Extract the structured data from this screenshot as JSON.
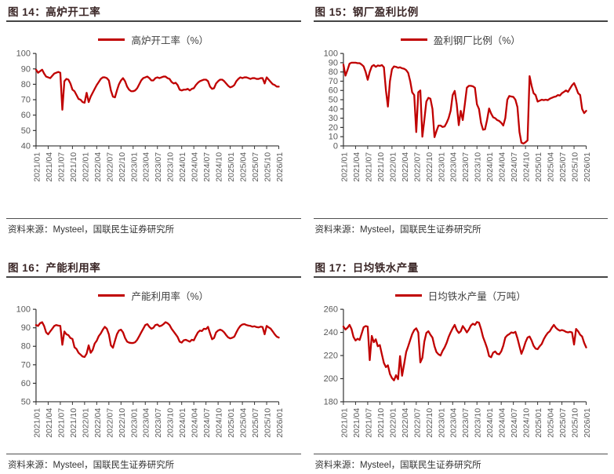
{
  "colors": {
    "series_red": "#c00000",
    "axis": "#333333",
    "tick_label": "#595959",
    "title_text": "#3a2626",
    "title_rule": "#454545",
    "source_rule": "#4f4f4f",
    "source_text": "#333333",
    "background": "#ffffff"
  },
  "figures": [
    {
      "title": "图 14：高炉开工率",
      "legend": "高炉开工率（%）",
      "source": "资料来源：Mysteel，国联民生证券研究所"
    },
    {
      "title": "图 15：钢厂盈利比例",
      "legend": "盈利钢厂比例（%）",
      "source": "资料来源：Mysteel，国联民生证券研究所"
    },
    {
      "title": "图 16：产能利用率",
      "legend": "产能利用率（%）",
      "source": "资料来源：Mysteel，国联民生证券研究所"
    },
    {
      "title": "图 17：日均铁水产量",
      "legend": "日均铁水产量（万吨）",
      "source": "资料来源：Mysteel，国联民生证券研究所"
    }
  ],
  "chart_data": [
    {
      "type": "line",
      "title": "高炉开工率",
      "legend_position": "top",
      "grid": false,
      "x_labels": [
        "2021/01",
        "2021/04",
        "2021/07",
        "2021/10",
        "2022/01",
        "2022/04",
        "2022/07",
        "2022/10",
        "2023/01",
        "2023/04",
        "2023/07",
        "2023/10",
        "2024/01",
        "2024/04",
        "2024/07",
        "2024/10",
        "2025/01",
        "2025/04",
        "2025/07",
        "2025/10",
        "2026/01"
      ],
      "ylim": [
        40,
        100
      ],
      "yticks": [
        40,
        50,
        60,
        70,
        80,
        90,
        100
      ],
      "series": [
        {
          "name": "高炉开工率（%）",
          "values": [
            89.5,
            87.5,
            88.5,
            89.5,
            87,
            85,
            84.5,
            84,
            85.5,
            87,
            87.5,
            88,
            87.5,
            63.5,
            82,
            83.5,
            83,
            80.5,
            76.5,
            75.5,
            73,
            70.5,
            70,
            68.5,
            68,
            74.5,
            68.5,
            72,
            74.5,
            77,
            79.5,
            81.5,
            83.5,
            84.5,
            84.5,
            84,
            82.5,
            76,
            72,
            71.5,
            76,
            80,
            82.5,
            84,
            82,
            78.5,
            76.5,
            75.5,
            75.5,
            76,
            77.5,
            80,
            82.5,
            84,
            84.5,
            85,
            84,
            82.5,
            82.5,
            84,
            84.5,
            84,
            84.5,
            85,
            85,
            84,
            83.5,
            81.5,
            80.5,
            81,
            79.5,
            76.5,
            76,
            76.5,
            76.5,
            77,
            76,
            77,
            77.5,
            79.5,
            81,
            82,
            82.5,
            83,
            83,
            82,
            78.5,
            77,
            77.5,
            80.5,
            82,
            83,
            83,
            82,
            80.5,
            79,
            78,
            78.5,
            79.5,
            82,
            83.5,
            84.5,
            84,
            84.5,
            84.5,
            84,
            83.5,
            84,
            84,
            83.5,
            83.5,
            84,
            84,
            80.5,
            84.5,
            83,
            81.5,
            80,
            79.5,
            78.5,
            78.5
          ]
        }
      ]
    },
    {
      "type": "line",
      "title": "钢厂盈利比例",
      "legend_position": "top",
      "grid": false,
      "x_labels": [
        "2021/01",
        "2021/04",
        "2021/07",
        "2021/10",
        "2022/01",
        "2022/04",
        "2022/07",
        "2022/10",
        "2023/01",
        "2023/04",
        "2023/07",
        "2023/10",
        "2024/01",
        "2024/04",
        "2024/07",
        "2024/10",
        "2025/01",
        "2025/04",
        "2025/07",
        "2025/10",
        "2026/01"
      ],
      "ylim": [
        0,
        100
      ],
      "yticks": [
        0,
        10,
        20,
        30,
        40,
        50,
        60,
        70,
        80,
        90,
        100
      ],
      "series": [
        {
          "name": "盈利钢厂比例（%）",
          "values": [
            88,
            76,
            82,
            89,
            90,
            90,
            90,
            89.5,
            89.5,
            88,
            86,
            80,
            71.5,
            80,
            86,
            87.5,
            85.5,
            87,
            86.5,
            87.5,
            85,
            60,
            42.5,
            70,
            83,
            86,
            85.5,
            84.5,
            85,
            84,
            83.5,
            82,
            79,
            70,
            58,
            55,
            15,
            58,
            60,
            10,
            28,
            48,
            52,
            51,
            40,
            9.5,
            16,
            22,
            22,
            20.5,
            21,
            25,
            30,
            38,
            55,
            59.5,
            45,
            22.5,
            38,
            28,
            45,
            63,
            65,
            65,
            64.5,
            63,
            45,
            40,
            25,
            17.5,
            18,
            28,
            40.5,
            35,
            31,
            30,
            28,
            27,
            25,
            22,
            30,
            50,
            54,
            53.5,
            53,
            50,
            42,
            15,
            3.5,
            2.5,
            4,
            6,
            75.5,
            65,
            57,
            55,
            48,
            49,
            50,
            49.5,
            50,
            49.5,
            51,
            52,
            53,
            53.5,
            55,
            54.5,
            57,
            58.5,
            60,
            58.5,
            62,
            65.5,
            68,
            63,
            57,
            55,
            40,
            35.5,
            38
          ]
        }
      ]
    },
    {
      "type": "line",
      "title": "产能利用率",
      "legend_position": "top",
      "grid": false,
      "x_labels": [
        "2021/01",
        "2021/04",
        "2021/07",
        "2021/10",
        "2022/01",
        "2022/04",
        "2022/07",
        "2022/10",
        "2023/01",
        "2023/04",
        "2023/07",
        "2023/10",
        "2024/01",
        "2024/04",
        "2024/07",
        "2024/10",
        "2025/01",
        "2025/04",
        "2025/07",
        "2025/10",
        "2026/01"
      ],
      "ylim": [
        50,
        100
      ],
      "yticks": [
        50,
        60,
        70,
        80,
        90,
        100
      ],
      "series": [
        {
          "name": "产能利用率（%）",
          "values": [
            91.5,
            91,
            92.5,
            93,
            91,
            87.5,
            86.5,
            88,
            89.5,
            91,
            91.5,
            91.2,
            91,
            80.8,
            88,
            86.5,
            86,
            84.5,
            84,
            79.5,
            78.5,
            76.5,
            75.5,
            74.5,
            74.2,
            76,
            80.5,
            76.5,
            78,
            81.5,
            83,
            85.5,
            87,
            89,
            90.5,
            89.5,
            86.5,
            80.5,
            79.2,
            83,
            86.5,
            88.5,
            89,
            87.5,
            84.5,
            82.5,
            82,
            81.8,
            81.8,
            82.2,
            83.5,
            85.5,
            87.5,
            89.5,
            91.5,
            92,
            90.5,
            89.5,
            90,
            91.5,
            91.8,
            90.8,
            91.2,
            92,
            93,
            92.5,
            91.5,
            89.5,
            88,
            86.5,
            85,
            82.5,
            82,
            83.2,
            83.5,
            83,
            82.5,
            83.5,
            83.2,
            85.5,
            87.5,
            88.5,
            88.2,
            89.5,
            89.3,
            90.5,
            87,
            83.8,
            84.5,
            87.5,
            88.5,
            89,
            88.5,
            87.5,
            86,
            84.8,
            84.3,
            84.6,
            85.2,
            87.5,
            89.5,
            91,
            91.8,
            92,
            91.5,
            91.2,
            91,
            90.6,
            90.8,
            90.4,
            90.2,
            90.6,
            90.4,
            86.5,
            91,
            90.2,
            89.5,
            88,
            86.5,
            85.2,
            84.7
          ]
        }
      ]
    },
    {
      "type": "line",
      "title": "日均铁水产量",
      "legend_position": "top",
      "grid": false,
      "x_labels": [
        "2021/01",
        "2021/04",
        "2021/07",
        "2021/10",
        "2022/01",
        "2022/04",
        "2022/07",
        "2022/10",
        "2023/01",
        "2023/04",
        "2023/07",
        "2023/10",
        "2024/01",
        "2024/04",
        "2024/07",
        "2024/10",
        "2025/01",
        "2025/04",
        "2025/07",
        "2025/10",
        "2026/01"
      ],
      "ylim": [
        180,
        260
      ],
      "yticks": [
        180,
        200,
        220,
        240,
        260
      ],
      "series": [
        {
          "name": "日均铁水产量（万吨）",
          "values": [
            245,
            242.5,
            244,
            246.5,
            243,
            236,
            233,
            234.5,
            233.5,
            239,
            244.5,
            245.5,
            245,
            216,
            237,
            231.5,
            234,
            228,
            229,
            221,
            213.5,
            210,
            211.5,
            204,
            200.5,
            198.5,
            203,
            199.5,
            219.5,
            202.5,
            212.5,
            223,
            228,
            233.5,
            238.5,
            242,
            243.5,
            240,
            214,
            218,
            232,
            239.5,
            241,
            238,
            235.5,
            228,
            223,
            221,
            220,
            224,
            227,
            231,
            236,
            240,
            243.5,
            246.5,
            242,
            239.5,
            241,
            245.5,
            243,
            240,
            242.5,
            246,
            247.5,
            246.5,
            249,
            248.5,
            243,
            236,
            231.5,
            226.5,
            219.5,
            218.5,
            222.5,
            223.5,
            221.5,
            221,
            223.5,
            228.5,
            235.5,
            237.5,
            238.5,
            240,
            239.5,
            240.5,
            235,
            228,
            221.5,
            226,
            231.5,
            235.5,
            236.5,
            233,
            228.5,
            226,
            225.5,
            228,
            230,
            234,
            237,
            239.5,
            241,
            244,
            246.5,
            244,
            242.5,
            241.5,
            242,
            241.5,
            240.5,
            240,
            240.5,
            240,
            229.5,
            243,
            241,
            238,
            236.5,
            231,
            227
          ]
        }
      ]
    }
  ]
}
